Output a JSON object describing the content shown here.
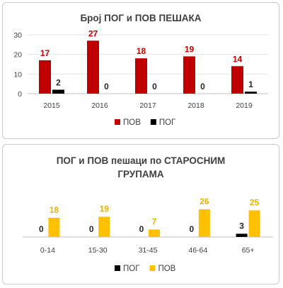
{
  "chart_data": [
    {
      "type": "bar",
      "title": "Број ПОГ и ПОВ ПЕШАКА",
      "categories": [
        "2015",
        "2016",
        "2017",
        "2018",
        "2019"
      ],
      "series": [
        {
          "name": "ПОВ",
          "values": [
            17,
            27,
            18,
            19,
            14
          ],
          "color": "#c00000"
        },
        {
          "name": "ПОГ",
          "values": [
            2,
            0,
            0,
            0,
            1
          ],
          "color": "#000000"
        }
      ],
      "ylim": [
        0,
        30
      ],
      "yticks": [
        0,
        10,
        20,
        30
      ],
      "grid": true,
      "legend": "bottom"
    },
    {
      "type": "bar",
      "title_lines": [
        "ПОГ  и ПОВ пешаци по СТАРОСНИМ",
        "ГРУПАМА"
      ],
      "categories": [
        "0-14",
        "15-30",
        "31-45",
        "46-64",
        "65+"
      ],
      "series": [
        {
          "name": "ПОГ",
          "values": [
            0,
            0,
            0,
            0,
            3
          ],
          "color": "#000000"
        },
        {
          "name": "ПОВ",
          "values": [
            18,
            19,
            7,
            26,
            25
          ],
          "color": "#ffc000"
        }
      ],
      "ylim": [
        0,
        32
      ],
      "grid": false,
      "legend": "bottom"
    }
  ]
}
